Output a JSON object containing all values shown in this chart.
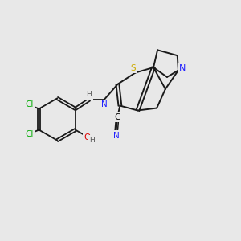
{
  "background_color": "#e8e8e8",
  "bond_color": "#1a1a1a",
  "atom_colors": {
    "C": "#000000",
    "N": "#2020ff",
    "S": "#ccaa00",
    "O": "#dd0000",
    "Cl": "#00aa00",
    "H": "#555555"
  },
  "figsize": [
    3.0,
    3.0
  ],
  "dpi": 100
}
